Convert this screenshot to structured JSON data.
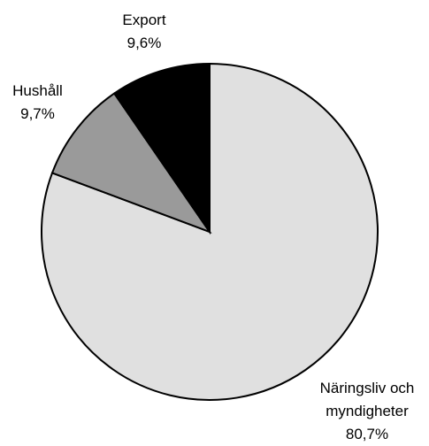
{
  "chart_data": {
    "type": "pie",
    "categories": [
      "Näringsliv och myndigheter",
      "Hushåll",
      "Export"
    ],
    "values": [
      80.7,
      9.7,
      9.6
    ],
    "value_labels": [
      "80,7%",
      "9,7%",
      "9,6%"
    ],
    "colors": [
      "#e0e0e0",
      "#9a9a9a",
      "#000000"
    ]
  }
}
